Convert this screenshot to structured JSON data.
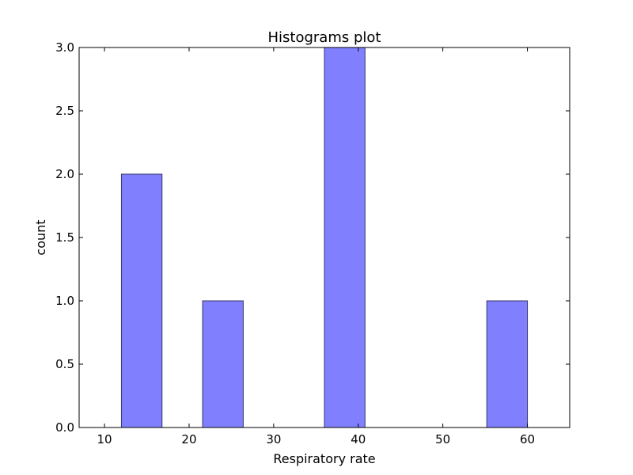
{
  "chart_data": {
    "type": "bar",
    "title": "Histograms plot",
    "xlabel": "Respiratory rate",
    "ylabel": "count",
    "xlim": [
      7,
      65
    ],
    "ylim": [
      0,
      3
    ],
    "x_ticks": [
      10,
      20,
      30,
      40,
      50,
      60
    ],
    "y_ticks": [
      0.0,
      0.5,
      1.0,
      1.5,
      2.0,
      2.5,
      3.0
    ],
    "x_tick_labels": [
      "10",
      "20",
      "30",
      "40",
      "50",
      "60"
    ],
    "y_tick_labels": [
      "0.0",
      "0.5",
      "1.0",
      "1.5",
      "2.0",
      "2.5",
      "3.0"
    ],
    "bins": [
      {
        "start": 12.0,
        "end": 16.8,
        "count": 2
      },
      {
        "start": 21.6,
        "end": 26.4,
        "count": 1
      },
      {
        "start": 36.0,
        "end": 40.8,
        "count": 3
      },
      {
        "start": 55.2,
        "end": 60.0,
        "count": 1
      }
    ],
    "bar_color": "#8080ff",
    "bar_edge_color": "#333366",
    "grid": false
  }
}
